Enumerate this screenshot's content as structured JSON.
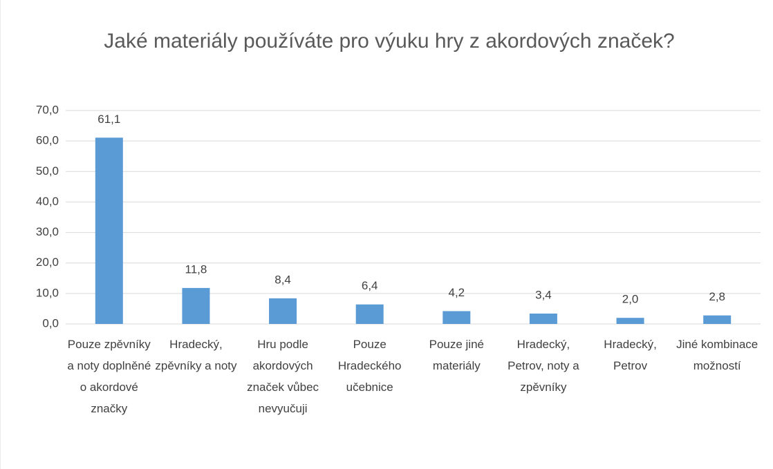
{
  "chart_data": {
    "type": "bar",
    "title": "Jaké materiály používáte pro výuku hry z akordových značek?",
    "categories": [
      "Pouze zpěvníky a noty doplněné o akordové značky",
      "Hradecký, zpěvníky a noty",
      "Hru podle akordových značek vůbec nevyučuji",
      "Pouze Hradeckého učebnice",
      "Pouze jiné materiály",
      "Hradecký, Petrov, noty a zpěvníky",
      "Hradecký, Petrov",
      "Jiné kombinace možností"
    ],
    "values": [
      61.1,
      11.8,
      8.4,
      6.4,
      4.2,
      3.4,
      2.0,
      2.8
    ],
    "value_labels": [
      "61,1",
      "11,8",
      "8,4",
      "6,4",
      "4,2",
      "3,4",
      "2,0",
      "2,8"
    ],
    "color": "#5b9bd5",
    "ylim": [
      0,
      70
    ],
    "yticks": [
      {
        "value": 0,
        "label": "0,0"
      },
      {
        "value": 10,
        "label": "10,0"
      },
      {
        "value": 20,
        "label": "20,0"
      },
      {
        "value": 30,
        "label": "30,0"
      },
      {
        "value": 40,
        "label": "40,0"
      },
      {
        "value": 50,
        "label": "50,0"
      },
      {
        "value": 60,
        "label": "60,0"
      },
      {
        "value": 70,
        "label": "70,0"
      }
    ],
    "grid": true
  }
}
